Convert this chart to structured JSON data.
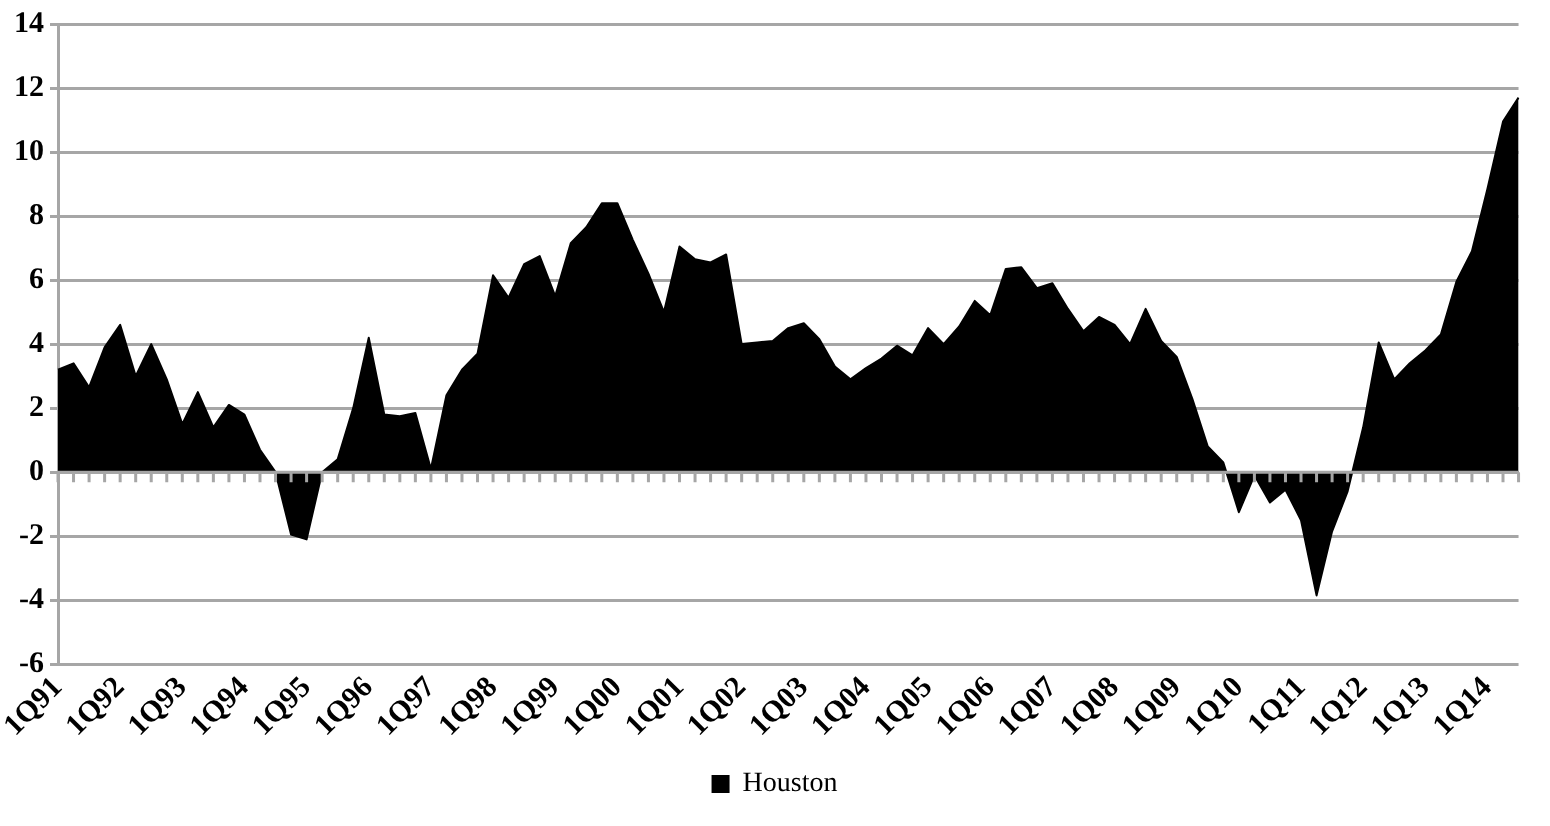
{
  "chart_data": {
    "type": "area",
    "categories": [
      "1Q91",
      null,
      null,
      null,
      "1Q92",
      null,
      null,
      null,
      "1Q93",
      null,
      null,
      null,
      "1Q94",
      null,
      null,
      null,
      "1Q95",
      null,
      null,
      null,
      "1Q96",
      null,
      null,
      null,
      "1Q97",
      null,
      null,
      null,
      "1Q98",
      null,
      null,
      null,
      "1Q99",
      null,
      null,
      null,
      "1Q00",
      null,
      null,
      null,
      "1Q01",
      null,
      null,
      null,
      "1Q02",
      null,
      null,
      null,
      "1Q03",
      null,
      null,
      null,
      "1Q04",
      null,
      null,
      null,
      "1Q05",
      null,
      null,
      null,
      "1Q06",
      null,
      null,
      null,
      "1Q07",
      null,
      null,
      null,
      "1Q08",
      null,
      null,
      null,
      "1Q09",
      null,
      null,
      null,
      "1Q10",
      null,
      null,
      null,
      "1Q11",
      null,
      null,
      null,
      "1Q12",
      null,
      null,
      null,
      "1Q13",
      null,
      null,
      null,
      "1Q14",
      null,
      null
    ],
    "series": [
      {
        "name": "Houston",
        "color": "#000000",
        "values": [
          3.2,
          3.4,
          2.65,
          3.9,
          4.6,
          3.0,
          4.0,
          2.9,
          1.5,
          2.5,
          1.4,
          2.1,
          1.8,
          0.7,
          0,
          -1.95,
          -2.1,
          0,
          0.4,
          2,
          4.2,
          1.8,
          1.75,
          1.85,
          0.1,
          2.4,
          3.2,
          3.7,
          6.15,
          5.45,
          6.5,
          6.75,
          5.5,
          7.15,
          7.65,
          8.4,
          8.4,
          7.25,
          6.2,
          5.0,
          7.05,
          6.65,
          6.55,
          6.8,
          4.0,
          4.05,
          4.1,
          4.5,
          4.65,
          4.15,
          3.3,
          2.9,
          3.25,
          3.55,
          3.95,
          3.65,
          4.5,
          4.0,
          4.55,
          5.35,
          4.9,
          6.35,
          6.4,
          5.75,
          5.9,
          5.1,
          4.4,
          4.85,
          4.6,
          4.0,
          5.1,
          4.1,
          3.6,
          2.3,
          0.8,
          0.3,
          -1.25,
          -0.1,
          -0.95,
          -0.55,
          -1.5,
          -3.85,
          -1.85,
          -0.6,
          1.4,
          4.05,
          2.9,
          3.4,
          3.8,
          4.3,
          5.95,
          6.9,
          8.85,
          10.95,
          11.7
        ]
      }
    ],
    "ylim": [
      -6,
      14
    ],
    "yticks": [
      -6,
      -4,
      -2,
      0,
      2,
      4,
      6,
      8,
      10,
      12,
      14
    ],
    "grid": "y",
    "legend": "bottom",
    "marker": "none"
  }
}
